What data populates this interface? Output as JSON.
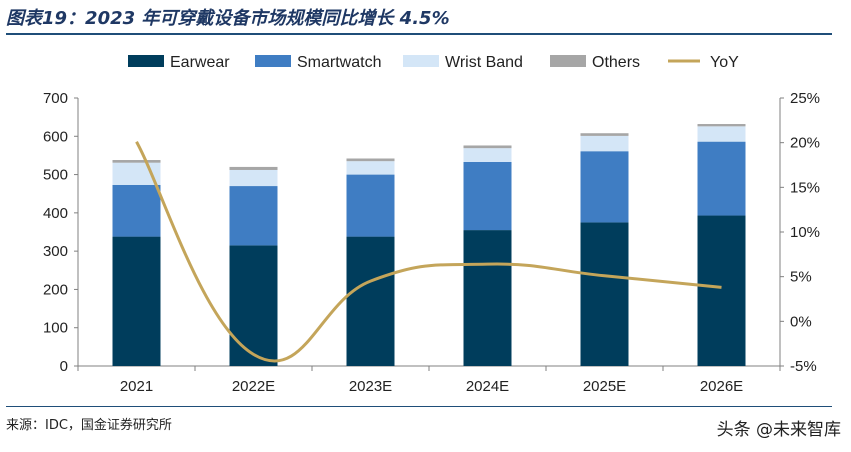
{
  "title": "图表19：2023 年可穿戴设备市场规模同比增长 4.5%",
  "source": "来源：IDC，国金证券研究所",
  "watermark": "头条 @未来智库",
  "colors": {
    "Earwear": "#003d5c",
    "Smartwatch": "#3f7dc3",
    "Wrist Band": "#d4e6f7",
    "Others": "#a6a6a6",
    "YoY": "#c4a55a"
  },
  "chart_data": {
    "type": "bar",
    "stacked": true,
    "categories": [
      "2021",
      "2022E",
      "2023E",
      "2024E",
      "2025E",
      "2026E"
    ],
    "series": [
      {
        "name": "Earwear",
        "values": [
          338,
          315,
          338,
          355,
          375,
          393
        ]
      },
      {
        "name": "Smartwatch",
        "values": [
          135,
          155,
          162,
          178,
          186,
          193
        ]
      },
      {
        "name": "Wrist Band",
        "values": [
          58,
          42,
          35,
          36,
          40,
          40
        ]
      },
      {
        "name": "Others",
        "values": [
          7,
          8,
          7,
          7,
          7,
          6
        ]
      }
    ],
    "line_series": {
      "name": "YoY",
      "axis": "right",
      "values": [
        20.1,
        -3.7,
        4.5,
        6.4,
        5.1,
        3.8
      ]
    },
    "ylim": [
      0,
      700
    ],
    "yticks": [
      "0",
      "100",
      "200",
      "300",
      "400",
      "500",
      "600",
      "700"
    ],
    "y2lim": [
      -5,
      25
    ],
    "y2ticks": [
      "-5%",
      "0%",
      "5%",
      "10%",
      "15%",
      "20%",
      "25%"
    ],
    "legend": [
      "Earwear",
      "Smartwatch",
      "Wrist Band",
      "Others",
      "YoY"
    ],
    "legend_position": "top",
    "grid": false
  }
}
